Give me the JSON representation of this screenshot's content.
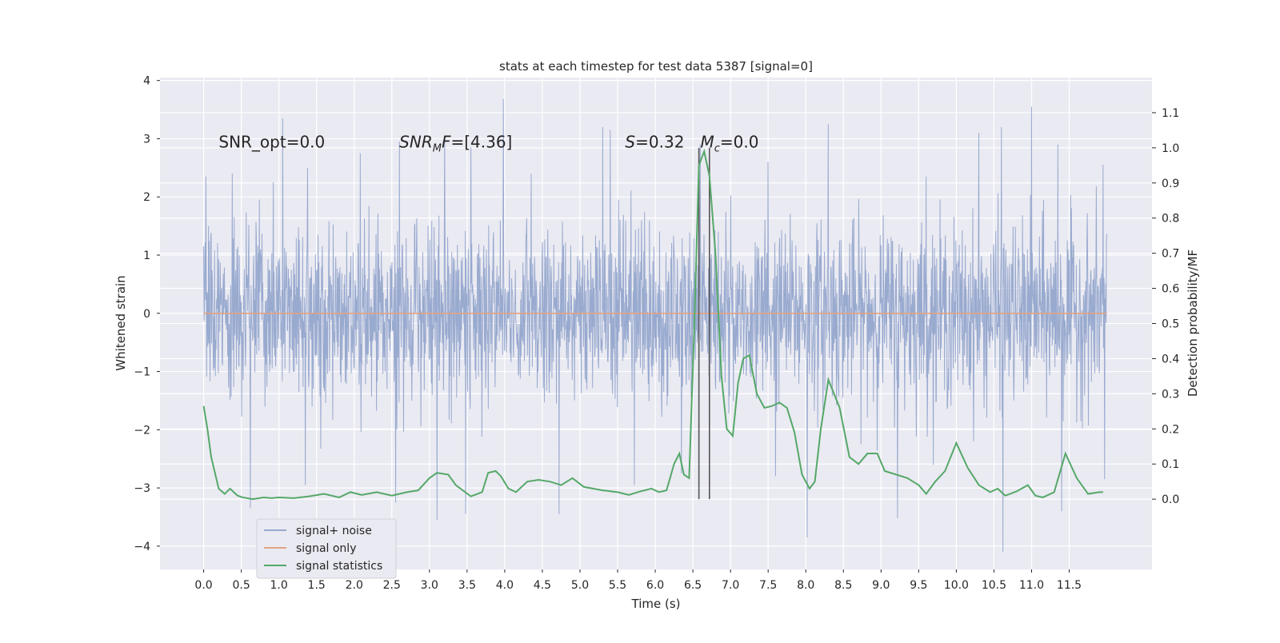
{
  "chart_data": {
    "type": "line",
    "title": "stats at each timestep for test data 5387 [signal=0]",
    "xlabel": "Time (s)",
    "ylabel_left": "Whitened strain",
    "ylabel_right": "Detection probability/MF",
    "xlim": [
      -0.58,
      12.6
    ],
    "ylim_left": [
      -4.4,
      4.05
    ],
    "ylim_right": [
      -0.2,
      1.2
    ],
    "x_ticks": [
      0.0,
      0.5,
      1.0,
      1.5,
      2.0,
      2.5,
      3.0,
      3.5,
      4.0,
      4.5,
      5.0,
      5.5,
      6.0,
      6.5,
      7.0,
      7.5,
      8.0,
      8.5,
      9.0,
      9.5,
      10.0,
      10.5,
      11.0,
      11.5
    ],
    "x_tick_labels": [
      "0.0",
      "0.5",
      "1.0",
      "1.5",
      "2.0",
      "2.5",
      "3.0",
      "3.5",
      "4.0",
      "4.5",
      "5.0",
      "5.5",
      "6.0",
      "6.5",
      "7.0",
      "7.5",
      "8.0",
      "8.5",
      "9.0",
      "9.5",
      "10.0",
      "10.5",
      "11.0",
      "11.5"
    ],
    "y_left_ticks": [
      4,
      3,
      2,
      1,
      0,
      -1,
      -2,
      -3,
      -4
    ],
    "y_left_tick_labels": [
      "4",
      "3",
      "2",
      "1",
      "0",
      "−1",
      "−2",
      "−3",
      "−4"
    ],
    "y_right_ticks": [
      1.1,
      1.0,
      0.9,
      0.8,
      0.7,
      0.6,
      0.5,
      0.4,
      0.3,
      0.2,
      0.1,
      0.0
    ],
    "y_right_tick_labels": [
      "1.1",
      "1.0",
      "0.9",
      "0.8",
      "0.7",
      "0.6",
      "0.5",
      "0.4",
      "0.3",
      "0.2",
      "0.1",
      "0.0"
    ],
    "grid": true,
    "legend_position": "lower-left",
    "series": [
      {
        "name": "signal+ noise",
        "axis": "left",
        "color": "#99aacf",
        "noise_std": 0.75,
        "time_range": [
          0.0,
          12.0
        ],
        "spike_peaks": [
          {
            "t": 0.0,
            "v": 1.15
          },
          {
            "t": 0.03,
            "v": 2.35
          },
          {
            "t": 0.38,
            "v": 2.4
          },
          {
            "t": 1.05,
            "v": 3.35
          },
          {
            "t": 1.38,
            "v": 2.5
          },
          {
            "t": 2.08,
            "v": 2.75
          },
          {
            "t": 2.6,
            "v": 2.95
          },
          {
            "t": 3.2,
            "v": 3.05
          },
          {
            "t": 3.55,
            "v": 2.85
          },
          {
            "t": 3.98,
            "v": 3.68
          },
          {
            "t": 4.35,
            "v": 2.4
          },
          {
            "t": 5.3,
            "v": 3.2
          },
          {
            "t": 5.4,
            "v": 3.15
          },
          {
            "t": 6.6,
            "v": 2.9
          },
          {
            "t": 7.5,
            "v": 2.6
          },
          {
            "t": 8.3,
            "v": 3.25
          },
          {
            "t": 9.6,
            "v": 2.35
          },
          {
            "t": 10.3,
            "v": 3.1
          },
          {
            "t": 10.6,
            "v": 3.2
          },
          {
            "t": 11.0,
            "v": 3.55
          },
          {
            "t": 11.35,
            "v": 2.9
          },
          {
            "t": 11.95,
            "v": 2.55
          }
        ],
        "spike_troughs": [
          {
            "t": 0.62,
            "v": -3.35
          },
          {
            "t": 1.35,
            "v": -2.95
          },
          {
            "t": 2.55,
            "v": -3.25
          },
          {
            "t": 3.1,
            "v": -3.55
          },
          {
            "t": 3.48,
            "v": -3.45
          },
          {
            "t": 4.72,
            "v": -3.45
          },
          {
            "t": 5.72,
            "v": -2.95
          },
          {
            "t": 6.35,
            "v": -2.75
          },
          {
            "t": 7.6,
            "v": -2.8
          },
          {
            "t": 8.02,
            "v": -3.85
          },
          {
            "t": 9.22,
            "v": -3.52
          },
          {
            "t": 10.62,
            "v": -4.1
          },
          {
            "t": 11.4,
            "v": -3.4
          },
          {
            "t": 11.97,
            "v": -2.85
          }
        ]
      },
      {
        "name": "signal only",
        "axis": "left",
        "color": "#e1a384",
        "x": [
          0.0,
          12.0
        ],
        "y": [
          0.0,
          0.0
        ]
      },
      {
        "name": "signal statistics",
        "axis": "right",
        "color": "#55a868",
        "x": [
          0.0,
          0.05,
          0.1,
          0.2,
          0.28,
          0.35,
          0.45,
          0.52,
          0.65,
          0.8,
          0.9,
          1.0,
          1.2,
          1.4,
          1.6,
          1.8,
          1.95,
          2.1,
          2.3,
          2.5,
          2.7,
          2.85,
          3.0,
          3.1,
          3.25,
          3.35,
          3.55,
          3.7,
          3.78,
          3.88,
          3.95,
          4.05,
          4.15,
          4.3,
          4.45,
          4.6,
          4.75,
          4.9,
          5.05,
          5.3,
          5.5,
          5.65,
          5.8,
          5.95,
          6.05,
          6.15,
          6.25,
          6.32,
          6.38,
          6.45,
          6.52,
          6.58,
          6.65,
          6.72,
          6.8,
          6.88,
          6.95,
          7.03,
          7.1,
          7.17,
          7.25,
          7.35,
          7.45,
          7.55,
          7.65,
          7.75,
          7.85,
          7.95,
          8.05,
          8.12,
          8.2,
          8.3,
          8.45,
          8.58,
          8.7,
          8.82,
          8.95,
          9.05,
          9.2,
          9.35,
          9.5,
          9.6,
          9.72,
          9.85,
          10.0,
          10.15,
          10.3,
          10.45,
          10.55,
          10.65,
          10.8,
          10.95,
          11.05,
          11.15,
          11.3,
          11.45,
          11.6,
          11.75,
          11.9,
          11.95
        ],
        "y": [
          0.265,
          0.2,
          0.12,
          0.03,
          0.015,
          0.03,
          0.01,
          0.005,
          0.0,
          0.005,
          0.003,
          0.005,
          0.003,
          0.008,
          0.015,
          0.005,
          0.02,
          0.012,
          0.02,
          0.01,
          0.02,
          0.025,
          0.06,
          0.075,
          0.07,
          0.04,
          0.008,
          0.02,
          0.075,
          0.08,
          0.065,
          0.03,
          0.02,
          0.05,
          0.055,
          0.05,
          0.04,
          0.06,
          0.035,
          0.025,
          0.02,
          0.012,
          0.022,
          0.03,
          0.02,
          0.025,
          0.1,
          0.13,
          0.07,
          0.06,
          0.5,
          0.95,
          0.99,
          0.92,
          0.7,
          0.35,
          0.2,
          0.18,
          0.33,
          0.4,
          0.41,
          0.3,
          0.26,
          0.265,
          0.275,
          0.26,
          0.19,
          0.07,
          0.03,
          0.05,
          0.2,
          0.34,
          0.26,
          0.12,
          0.1,
          0.13,
          0.13,
          0.08,
          0.07,
          0.06,
          0.04,
          0.015,
          0.05,
          0.08,
          0.16,
          0.09,
          0.04,
          0.02,
          0.03,
          0.01,
          0.022,
          0.04,
          0.01,
          0.005,
          0.02,
          0.13,
          0.06,
          0.015,
          0.02,
          0.02
        ]
      }
    ],
    "vertical_lines": [
      {
        "x": 6.58,
        "color": "#555555"
      },
      {
        "x": 6.72,
        "color": "#555555"
      }
    ],
    "annotations": [
      {
        "id": "snr-opt",
        "text": "SNR_opt=0.0",
        "t": 0.2,
        "y_left": 2.85
      },
      {
        "id": "snr-mf",
        "base": "SNR",
        "sub": "M",
        "suffix": "F=[4.36]",
        "t": 2.6,
        "y_left": 2.85
      },
      {
        "id": "s-stat",
        "italic": "S",
        "suffix": "=0.32",
        "t": 5.6,
        "y_left": 2.85
      },
      {
        "id": "mc",
        "italic": "M",
        "sub": "c",
        "suffix": "=0.0",
        "t": 6.6,
        "y_left": 2.85
      }
    ]
  }
}
